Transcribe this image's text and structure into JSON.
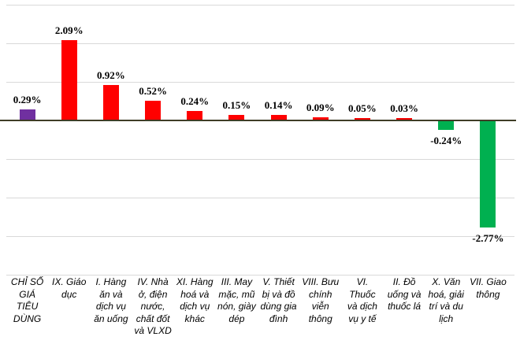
{
  "chart_data": {
    "type": "bar",
    "title": "",
    "xlabel": "",
    "ylabel": "",
    "categories": [
      "CHỈ SỐ\nGIÁ\nTIÊU\nDÙNG",
      "IX. Giáo\ndục",
      "I. Hàng\năn và\ndịch vụ\năn uống",
      "IV. Nhà\nở, điện\nnước,\nchất đốt\nvà VLXD",
      "XI. Hàng\nhoá và\ndịch vụ\nkhác",
      "III. May\nmặc, mũ\nnón, giày\ndép",
      "V. Thiết\nbị và đồ\ndùng gia\nđình",
      "VIII. Bưu\nchính\nviễn\nthông",
      "VI.\nThuốc\nvà dịch\nvụ y tế",
      "II. Đồ\nuống và\nthuốc lá",
      "X. Văn\nhoá, giải\ntrí và du\nlịch",
      "VII. Giao\nthông"
    ],
    "values": [
      0.29,
      2.09,
      0.92,
      0.52,
      0.24,
      0.15,
      0.14,
      0.09,
      0.05,
      0.03,
      -0.24,
      -2.77
    ],
    "value_labels": [
      "0.29%",
      "2.09%",
      "0.92%",
      "0.52%",
      "0.24%",
      "0.15%",
      "0.14%",
      "0.09%",
      "0.05%",
      "0.03%",
      "-0.24%",
      "-2.77%"
    ],
    "bar_colors": [
      "#7030A0",
      "#FF0000",
      "#FF0000",
      "#FF0000",
      "#FF0000",
      "#FF0000",
      "#FF0000",
      "#FF0000",
      "#FF0000",
      "#FF0000",
      "#00B050",
      "#00B050"
    ],
    "ylim": [
      -4,
      3
    ],
    "gridline_step": 1,
    "grid": true,
    "legend": false,
    "y_axis_tick_labels_visible": false
  },
  "colors": {
    "positive_bar": "#FF0000",
    "negative_bar": "#00B050",
    "cpi_bar": "#7030A0",
    "gridline": "#D9D9D9",
    "zero_axis": "#3F3D26",
    "label_text": "#000000",
    "background": "#FFFFFF"
  }
}
